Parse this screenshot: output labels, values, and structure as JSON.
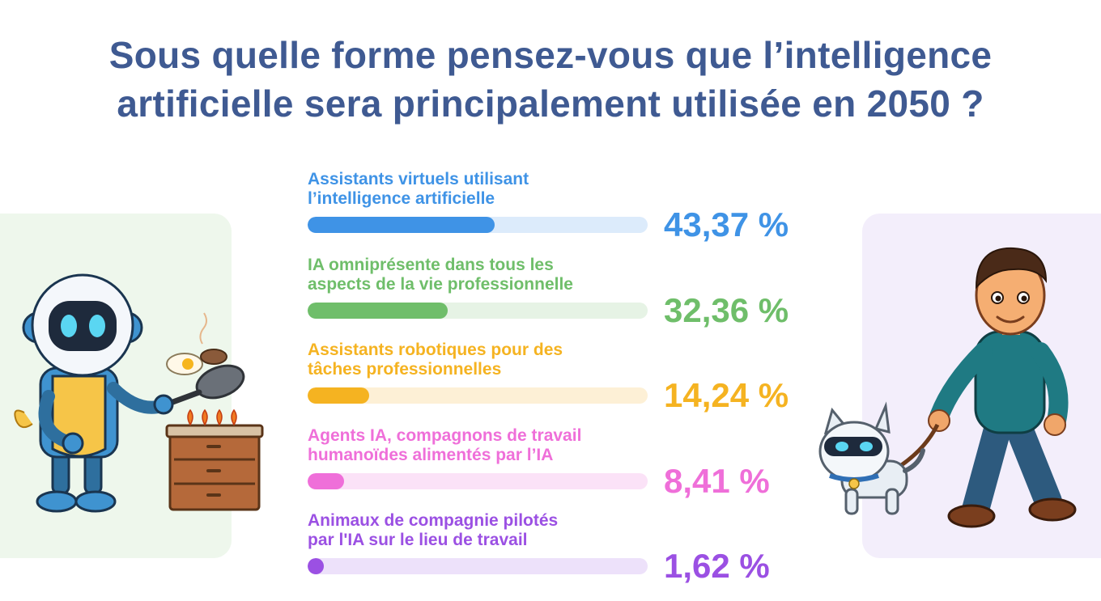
{
  "title": {
    "line1": "Sous quelle forme pensez-vous que l’intelligence",
    "line2": "artificielle sera principalement utilisée en 2050 ?"
  },
  "chart_data": {
    "type": "bar",
    "orientation": "horizontal",
    "title": "Sous quelle forme pensez-vous que l’intelligence artificielle sera principalement utilisée en 2050 ?",
    "unit": "%",
    "xlim": [
      0,
      100
    ],
    "items": [
      {
        "label_line1": "Assistants virtuels utilisant",
        "label_line2": "l’intelligence artificielle",
        "value": 43.37,
        "value_label": "43,37 %",
        "color": "#3f93e6",
        "track_color": "#dcebfb"
      },
      {
        "label_line1": "IA omniprésente dans tous les",
        "label_line2": "aspects de la vie professionnelle",
        "value": 32.36,
        "value_label": "32,36 %",
        "color": "#6fbe6a",
        "track_color": "#e6f3e5"
      },
      {
        "label_line1": "Assistants robotiques pour des",
        "label_line2": "tâches professionnelles",
        "value": 14.24,
        "value_label": "14,24 %",
        "color": "#f5b321",
        "track_color": "#fdf0d6"
      },
      {
        "label_line1": "Agents IA, compagnons de travail",
        "label_line2": "humanoïdes alimentés par l’IA",
        "value": 8.41,
        "value_label": "8,41 %",
        "color": "#ef6fd9",
        "track_color": "#fbe2f7"
      },
      {
        "label_line1": "Animaux de compagnie pilotés",
        "label_line2": "par l'IA sur le lieu de travail",
        "value": 1.62,
        "value_label": "1,62 %",
        "color": "#9b50e3",
        "track_color": "#ede1fa"
      }
    ]
  }
}
